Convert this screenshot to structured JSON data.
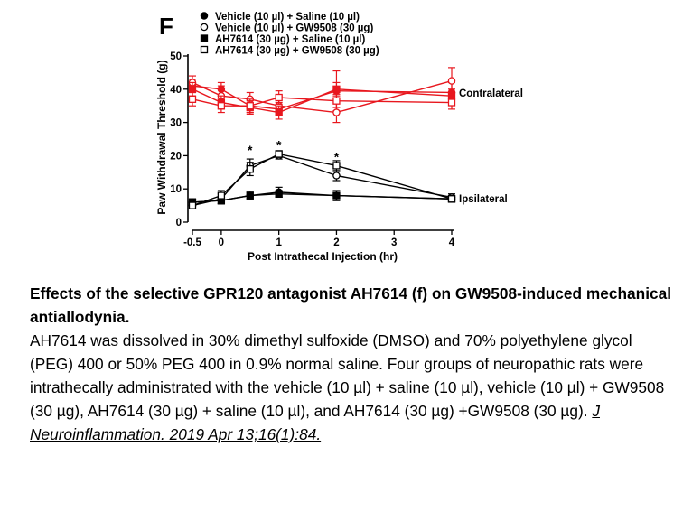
{
  "chart_data": {
    "type": "line",
    "panel_label": "F",
    "xlabel": "Post Intrathecal Injection (hr)",
    "ylabel": "Paw Withdrawal Threshold (g)",
    "x_ticks": [
      "-0.5",
      "0",
      "1",
      "2",
      "3",
      "4"
    ],
    "y_ticks": [
      "0",
      "10",
      "20",
      "30",
      "40",
      "50"
    ],
    "xlim": [
      -0.5,
      4
    ],
    "ylim": [
      0,
      50
    ],
    "legend": [
      {
        "label": "Vehicle (10 µl) + Saline (10 µl)",
        "marker": "circle-filled"
      },
      {
        "label": "Vehicle (10 µl) + GW9508 (30 µg)",
        "marker": "circle-open"
      },
      {
        "label": "AH7614 (30 µg) + Saline (10 µl)",
        "marker": "square-filled"
      },
      {
        "label": "AH7614 (30 µg) + GW9508 (30 µg)",
        "marker": "square-open"
      }
    ],
    "groups": [
      {
        "label": "Contralateral",
        "color": "#e8171e"
      },
      {
        "label": "Ipsilateral",
        "color": "#000000"
      }
    ],
    "x": [
      -0.5,
      0,
      0.5,
      1,
      2,
      4
    ],
    "series": [
      {
        "name": "Vehicle (10 µl) + Saline (10 µl)",
        "group": "Contralateral",
        "marker": "circle-filled",
        "values": [
          41,
          40,
          35,
          34,
          39.5,
          39
        ],
        "errors": [
          2,
          2,
          2,
          2,
          6,
          3
        ]
      },
      {
        "name": "Vehicle (10 µl) + GW9508 (30 µg)",
        "group": "Contralateral",
        "marker": "circle-open",
        "values": [
          42,
          38,
          37,
          35,
          33,
          42.5
        ],
        "errors": [
          2,
          3,
          2,
          3,
          3,
          4
        ]
      },
      {
        "name": "AH7614 (30 µg) + Saline (10 µl)",
        "group": "Contralateral",
        "marker": "square-filled",
        "values": [
          40,
          36,
          34.5,
          33,
          40,
          38
        ],
        "errors": [
          2,
          2,
          2,
          2,
          2,
          2
        ]
      },
      {
        "name": "AH7614 (30 µg) + GW9508 (30 µg)",
        "group": "Contralateral",
        "marker": "square-open",
        "values": [
          37,
          35,
          35,
          37.5,
          36.5,
          36
        ],
        "errors": [
          2,
          2,
          2,
          2,
          2,
          2
        ]
      },
      {
        "name": "Vehicle (10 µl) + Saline (10 µl)",
        "group": "Ipsilateral",
        "marker": "circle-filled",
        "values": [
          6,
          6.5,
          8,
          9,
          8,
          7
        ],
        "errors": [
          1,
          1,
          1,
          1.5,
          1.5,
          1
        ]
      },
      {
        "name": "Vehicle (10 µl) + GW9508 (30 µg)",
        "group": "Ipsilateral",
        "marker": "circle-open",
        "values": [
          5,
          7,
          17,
          20,
          14,
          7.5
        ],
        "errors": [
          1,
          1.5,
          2,
          1,
          1.5,
          1
        ]
      },
      {
        "name": "AH7614 (30 µg) + Saline (10 µl)",
        "group": "Ipsilateral",
        "marker": "square-filled",
        "values": [
          6,
          6.5,
          8,
          8.5,
          8,
          7
        ],
        "errors": [
          1,
          1,
          1,
          1,
          1.5,
          1
        ]
      },
      {
        "name": "AH7614 (30 µg) + GW9508 (30 µg)",
        "group": "Ipsilateral",
        "marker": "square-open",
        "values": [
          5,
          8,
          16,
          20.5,
          17,
          7
        ],
        "errors": [
          1,
          1.5,
          2,
          1,
          1.5,
          1
        ]
      }
    ],
    "annotations": [
      {
        "text": "*",
        "x": 0.5,
        "y": 22
      },
      {
        "text": "*",
        "x": 1,
        "y": 23.5
      },
      {
        "text": "*",
        "x": 2,
        "y": 20
      }
    ]
  },
  "caption": {
    "title": "Effects of the selective GPR120 antagonist AH7614 (f) on GW9508-induced mechanical antiallodynia.",
    "body": "AH7614 was dissolved in 30% dimethyl sulfoxide (DMSO) and 70% polyethylene glycol (PEG) 400 or 50% PEG 400 in 0.9% normal saline. Four groups of neuropathic rats were intrathecally administrated with the vehicle (10 µl) + saline (10 µl), vehicle (10 µl) + GW9508 (30 µg), AH7614 (30 µg) + saline (10 µl), and AH7614 (30 µg) +GW9508 (30 µg).",
    "citation": "J Neuroinflammation. 2019 Apr 13;16(1):84."
  }
}
